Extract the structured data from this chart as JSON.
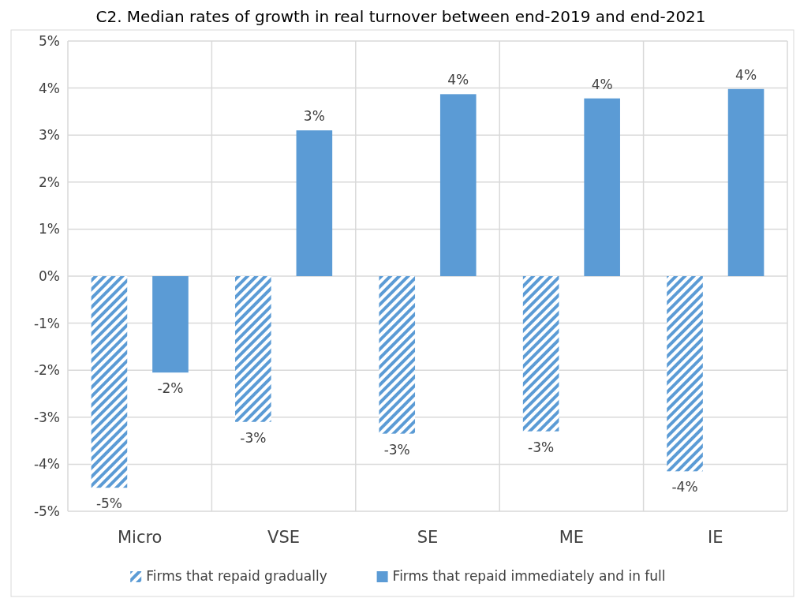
{
  "chart_data": {
    "type": "bar",
    "title": "C2. Median rates of growth in real turnover between end-2019 and end-2021",
    "categories": [
      "Micro",
      "VSE",
      "SE",
      "ME",
      "IE"
    ],
    "series": [
      {
        "name": "Firms that repaid gradually",
        "color": "#5b9bd5",
        "values": [
          -4.5,
          -3.1,
          -3.35,
          -3.3,
          -4.15
        ],
        "value_labels": [
          "-5%",
          "-3%",
          "-3%",
          "-3%",
          "-4%"
        ]
      },
      {
        "name": "Firms that repaid immediately and in full",
        "color": "#5b9bd5",
        "values": [
          -2.05,
          3.1,
          3.87,
          3.78,
          3.98
        ],
        "value_labels": [
          "-2%",
          "3%",
          "4%",
          "4%",
          "4%"
        ]
      }
    ],
    "ylim": [
      -5,
      5
    ],
    "yticks": [
      {
        "value": -5,
        "label": "-5%"
      },
      {
        "value": -4,
        "label": "-4%"
      },
      {
        "value": -3,
        "label": "-3%"
      },
      {
        "value": -2,
        "label": "-2%"
      },
      {
        "value": -1,
        "label": "-1%"
      },
      {
        "value": 0,
        "label": "0%"
      },
      {
        "value": 1,
        "label": "1%"
      },
      {
        "value": 2,
        "label": "2%"
      },
      {
        "value": 3,
        "label": "3%"
      },
      {
        "value": 4,
        "label": "4%"
      },
      {
        "value": 5,
        "label": "5%"
      }
    ],
    "grid": true,
    "legend": "bottom"
  }
}
